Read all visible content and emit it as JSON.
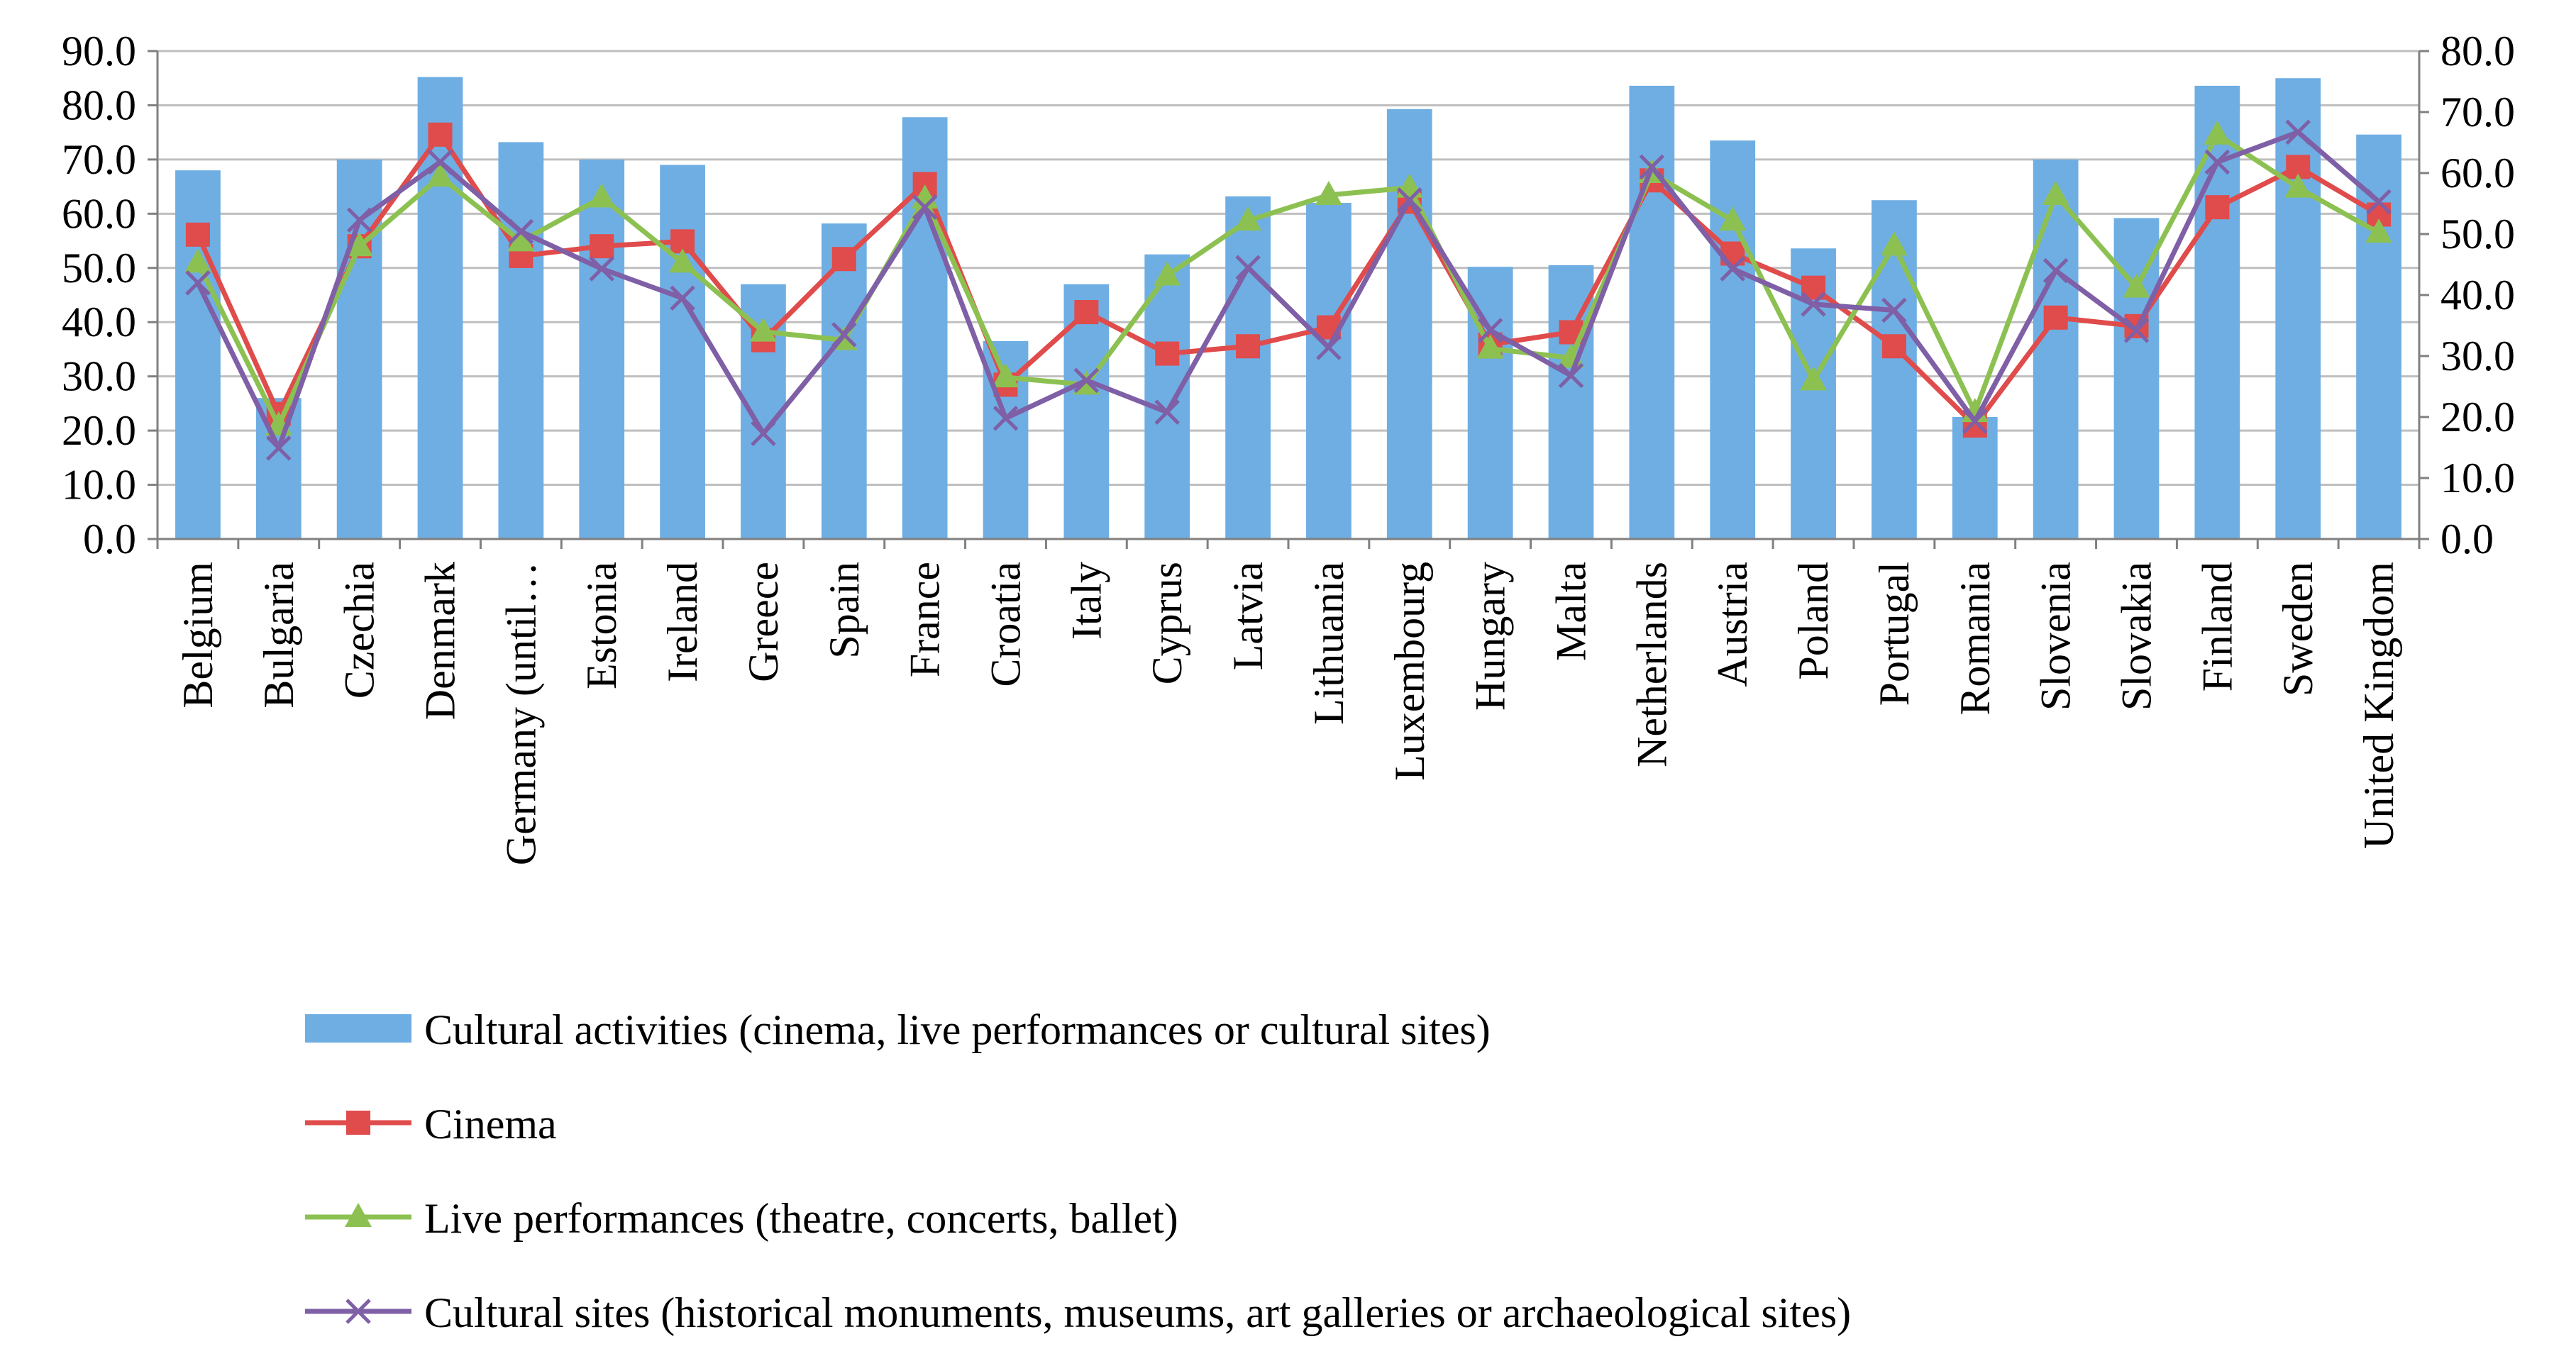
{
  "chart_data": {
    "type": "bar+line",
    "categories": [
      "Belgium",
      "Bulgaria",
      "Czechia",
      "Denmark",
      "Germany (until…",
      "Estonia",
      "Ireland",
      "Greece",
      "Spain",
      "France",
      "Croatia",
      "Italy",
      "Cyprus",
      "Latvia",
      "Lithuania",
      "Luxembourg",
      "Hungary",
      "Malta",
      "Netherlands",
      "Austria",
      "Poland",
      "Portugal",
      "Romania",
      "Slovenia",
      "Slovakia",
      "Finland",
      "Sweden",
      "United Kingdom"
    ],
    "left_axis": {
      "ylim": [
        0,
        90
      ],
      "ticks": [
        "0.0",
        "10.0",
        "20.0",
        "30.0",
        "40.0",
        "50.0",
        "60.0",
        "70.0",
        "80.0",
        "90.0"
      ]
    },
    "right_axis": {
      "ylim": [
        0,
        80
      ],
      "ticks": [
        "0.0",
        "10.0",
        "20.0",
        "30.0",
        "40.0",
        "50.0",
        "60.0",
        "70.0",
        "80.0"
      ]
    },
    "series": [
      {
        "name": "Cultural activities (cinema, live performances or cultural sites)",
        "kind": "bar",
        "axis": "left",
        "color": "#6FAEE3",
        "values": [
          68.0,
          26.0,
          70.0,
          85.2,
          73.2,
          70.0,
          69.0,
          47.0,
          58.2,
          77.8,
          36.5,
          47.0,
          52.5,
          63.2,
          62.0,
          79.3,
          50.2,
          50.5,
          83.6,
          73.5,
          53.6,
          62.5,
          22.5,
          70.0,
          59.2,
          83.6,
          85.0,
          74.6
        ]
      },
      {
        "name": "Cinema",
        "kind": "line",
        "axis": "right",
        "color": "#E04B4B",
        "marker": "square",
        "values": [
          49.9,
          20.5,
          48.0,
          66.3,
          46.4,
          48.0,
          48.8,
          32.6,
          45.9,
          58.2,
          25.3,
          37.2,
          30.4,
          31.6,
          34.7,
          55.3,
          31.9,
          33.9,
          58.8,
          46.8,
          41.2,
          31.6,
          18.6,
          36.3,
          34.9,
          54.4,
          61.0,
          53.2
        ]
      },
      {
        "name": "Live performances (theatre, concerts, ballet)",
        "kind": "line",
        "axis": "right",
        "color": "#8CC152",
        "marker": "triangle",
        "values": [
          45.3,
          18.6,
          48.0,
          59.4,
          48.8,
          56.0,
          45.3,
          34.0,
          32.6,
          55.8,
          26.5,
          25.3,
          43.2,
          52.2,
          56.4,
          57.6,
          31.2,
          29.7,
          60.0,
          52.2,
          26.0,
          48.1,
          20.8,
          56.4,
          41.2,
          66.3,
          57.6,
          50.2
        ]
      },
      {
        "name": "Cultural sites (historical monuments, museums, art galleries or archaeological sites)",
        "kind": "line",
        "axis": "right",
        "color": "#7F5FA6",
        "marker": "x",
        "values": [
          42.0,
          14.9,
          52.3,
          61.8,
          50.4,
          44.3,
          39.5,
          17.3,
          33.5,
          54.4,
          19.8,
          26.0,
          20.8,
          44.5,
          31.4,
          55.6,
          34.2,
          26.8,
          61.0,
          44.3,
          38.5,
          37.5,
          19.3,
          44.0,
          34.2,
          61.8,
          66.7,
          55.3
        ]
      }
    ]
  }
}
